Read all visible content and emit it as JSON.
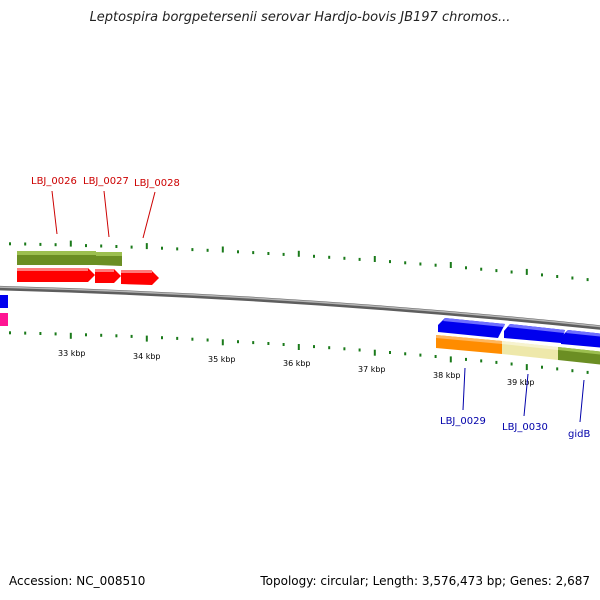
{
  "header": {
    "title": "Leptospira borgpetersenii serovar Hardjo-bovis JB197 chromos..."
  },
  "footer": {
    "accession": "Accession: NC_008510",
    "summary": "Topology: circular; Length: 3,576,473 bp; Genes: 2,687"
  },
  "colors": {
    "backbone": "#8c8c8c",
    "tick": "#1a7a1a",
    "red_gene": "#ff0000",
    "blue_gene": "#0000ee",
    "olive_gene": "#6b8e23",
    "orange_gene": "#ff8c00",
    "khaki_gene": "#eee8aa",
    "magenta_gene": "#ff1493",
    "red_label": "#cc0000",
    "blue_label": "#0000aa"
  },
  "scale_labels": [
    "33 kbp",
    "34 kbp",
    "35 kbp",
    "36 kbp",
    "37 kbp",
    "38 kbp",
    "39 kbp"
  ],
  "gene_labels_top": [
    "LBJ_0026",
    "LBJ_0027",
    "LBJ_0028"
  ],
  "gene_labels_bottom": [
    "LBJ_0029",
    "LBJ_0030",
    "gidB"
  ]
}
